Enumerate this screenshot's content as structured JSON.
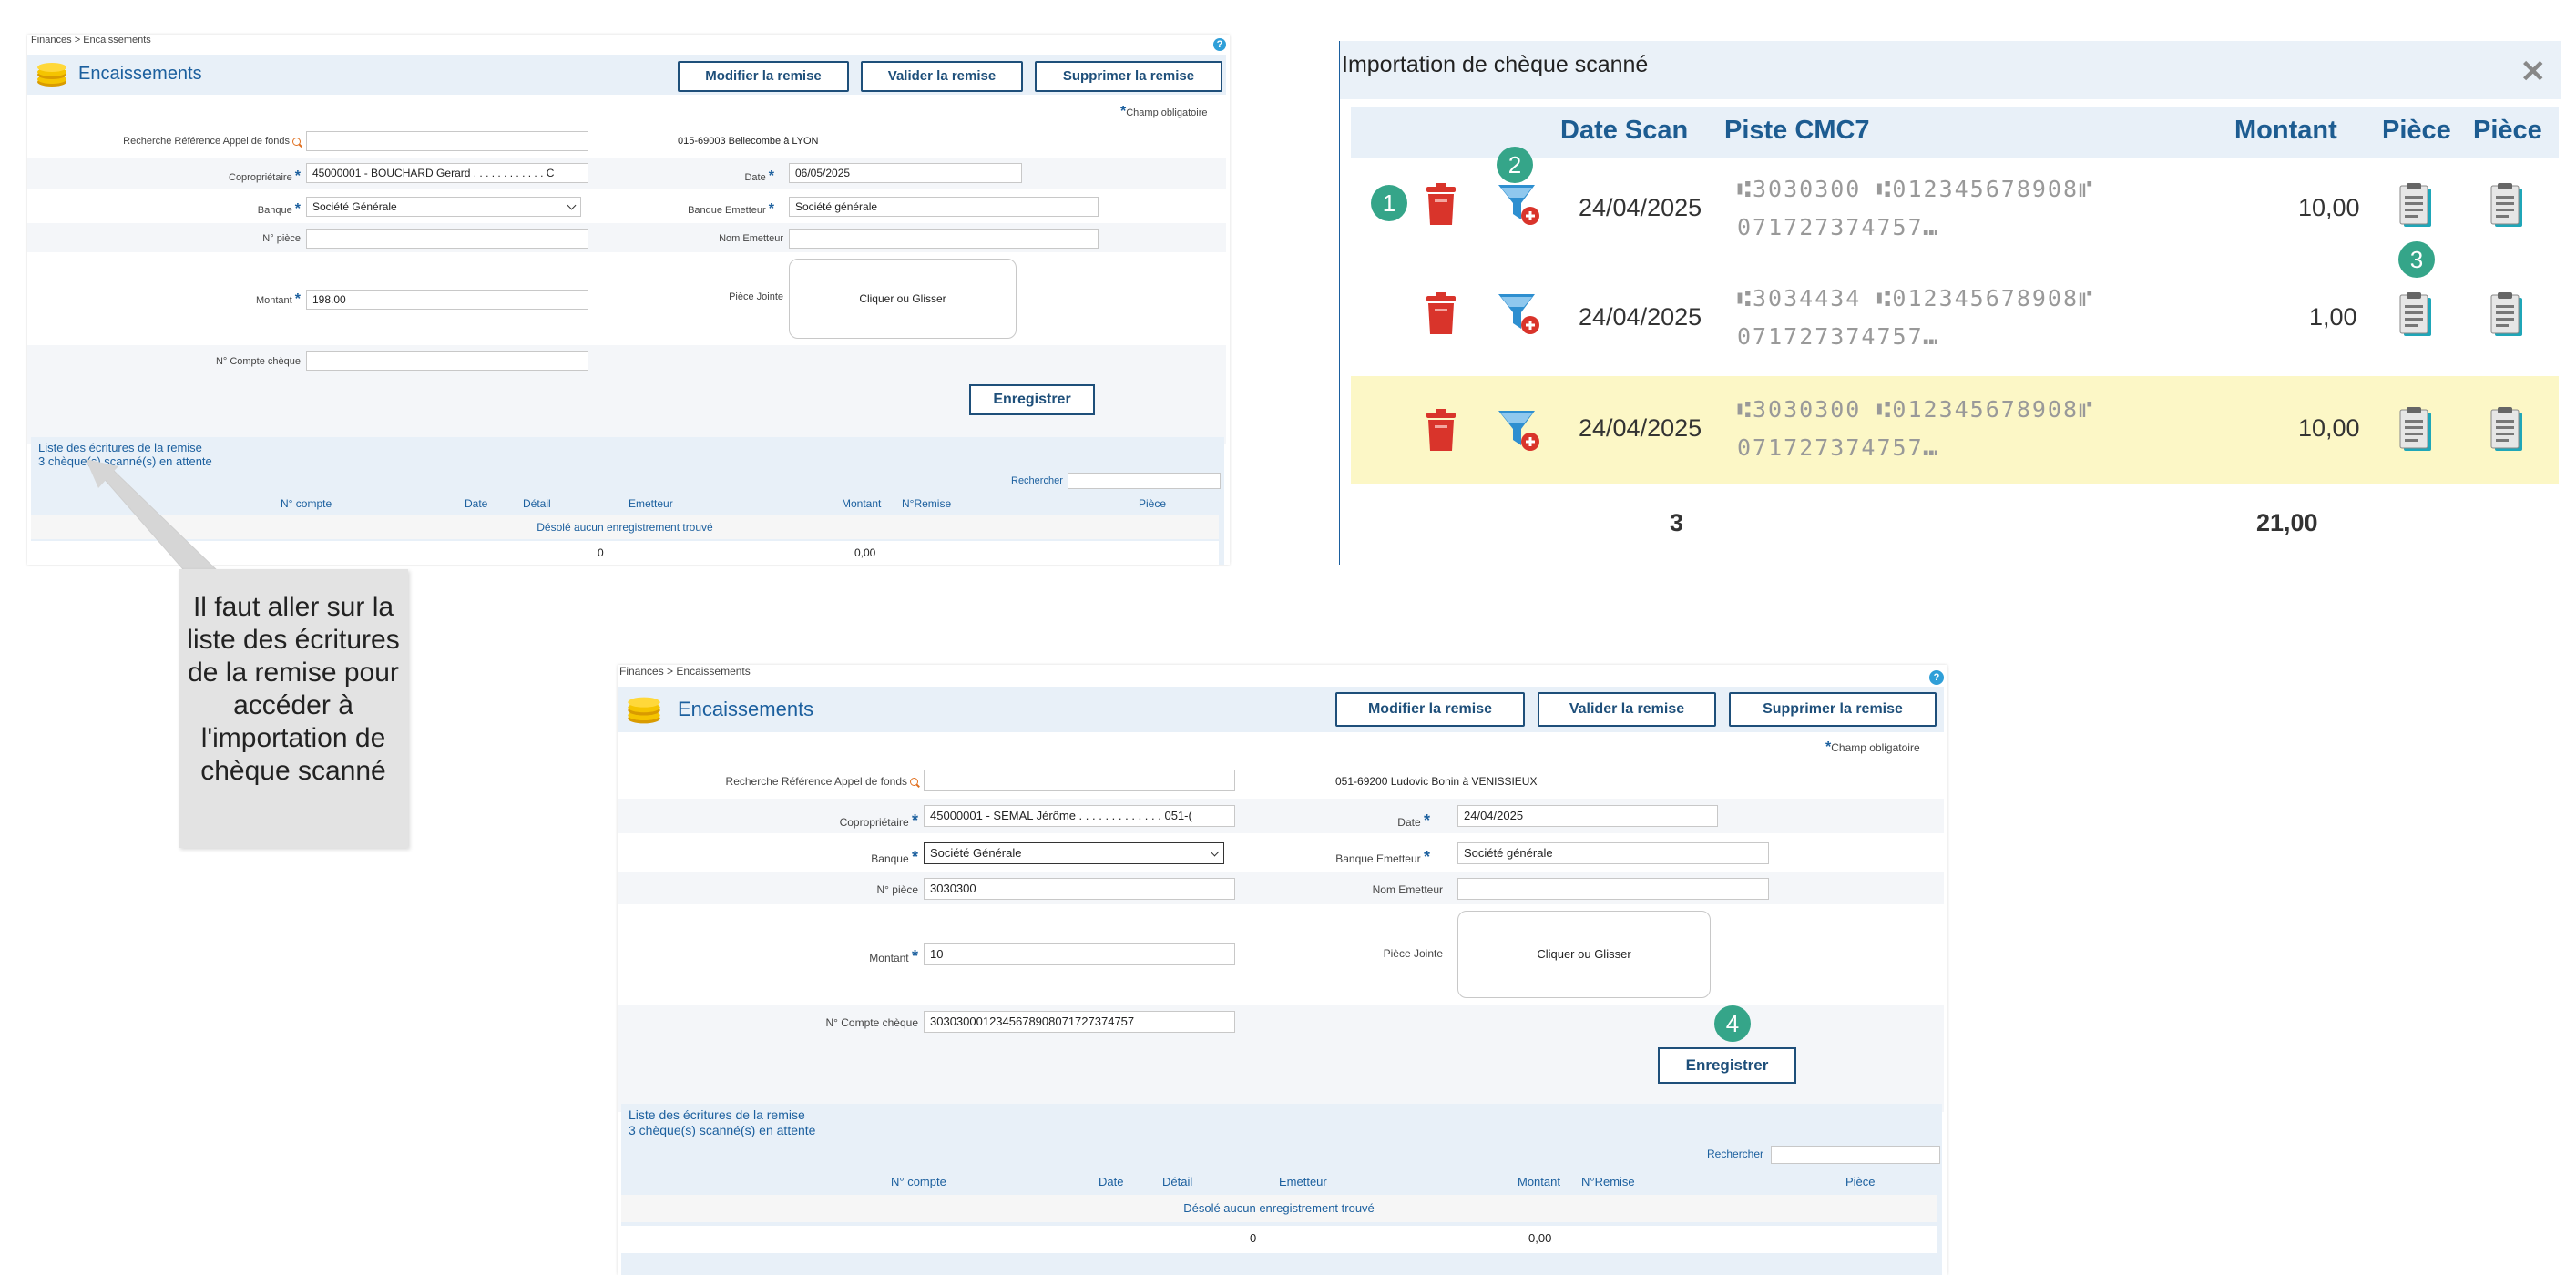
{
  "top_form": {
    "breadcrumb": {
      "section": "Finances",
      "sep": " > ",
      "page": "Encaissements"
    },
    "title": "Encaissements",
    "buttons": {
      "modify": "Modifier la remise",
      "validate": "Valider la remise",
      "delete": "Supprimer la remise"
    },
    "required_note": "Champ obligatoire",
    "fields": {
      "search_ref": {
        "label": "Recherche Référence Appel de fonds",
        "value": ""
      },
      "owner_info": "015-69003 Bellecombe à LYON",
      "coproprietaire": {
        "label": "Copropriétaire",
        "value": "45000001 - BOUCHARD Gerard . . . . . . . . . . . . C"
      },
      "date": {
        "label": "Date",
        "value": "06/05/2025"
      },
      "banque": {
        "label": "Banque",
        "value": "Société Générale"
      },
      "banque_emetteur": {
        "label": "Banque Emetteur",
        "value": "Société générale"
      },
      "num_piece": {
        "label": "N° pièce",
        "value": ""
      },
      "nom_emetteur": {
        "label": "Nom Emetteur",
        "value": ""
      },
      "montant": {
        "label": "Montant",
        "value": "198.00"
      },
      "piece_jointe": {
        "label": "Pièce Jointe",
        "drop_text": "Cliquer ou Glisser"
      },
      "compte_cheque": {
        "label": "N° Compte chèque",
        "value": ""
      }
    },
    "save_label": "Enregistrer",
    "list": {
      "title": "Liste des écritures de la remise",
      "pending": "3 chèque(s) scanné(s) en attente",
      "search_label": "Rechercher",
      "columns": [
        "N° compte",
        "Date",
        "Détail",
        "Emetteur",
        "Montant",
        "N°Remise",
        "Pièce"
      ],
      "empty_message": "Désolé aucun enregistrement trouvé",
      "total_count": "0",
      "total_amount": "0,00"
    }
  },
  "bottom_form": {
    "breadcrumb": {
      "section": "Finances",
      "sep": " > ",
      "page": "Encaissements"
    },
    "title": "Encaissements",
    "buttons": {
      "modify": "Modifier la remise",
      "validate": "Valider la remise",
      "delete": "Supprimer la remise"
    },
    "required_note": "Champ obligatoire",
    "fields": {
      "search_ref": {
        "label": "Recherche Référence Appel de fonds",
        "value": ""
      },
      "owner_info": "051-69200 Ludovic Bonin à VENISSIEUX",
      "coproprietaire": {
        "label": "Copropriétaire",
        "value": "45000001 - SEMAL Jérôme . . . . . . . . . . . . . 051-("
      },
      "date": {
        "label": "Date",
        "value": "24/04/2025"
      },
      "banque": {
        "label": "Banque",
        "value": "Société Générale"
      },
      "banque_emetteur": {
        "label": "Banque Emetteur",
        "value": "Société générale"
      },
      "num_piece": {
        "label": "N° pièce",
        "value": "3030300"
      },
      "nom_emetteur": {
        "label": "Nom Emetteur",
        "value": ""
      },
      "montant": {
        "label": "Montant",
        "value": "10"
      },
      "piece_jointe": {
        "label": "Pièce Jointe",
        "drop_text": "Cliquer ou Glisser"
      },
      "compte_cheque": {
        "label": "N° Compte chèque",
        "value": "3030300012345678908071727374757"
      }
    },
    "save_label": "Enregistrer",
    "step_badge": "4",
    "list": {
      "title": "Liste des écritures de la remise",
      "pending": "3 chèque(s) scanné(s) en attente",
      "search_label": "Rechercher",
      "columns": [
        "N° compte",
        "Date",
        "Détail",
        "Emetteur",
        "Montant",
        "N°Remise",
        "Pièce"
      ],
      "empty_message": "Désolé aucun enregistrement trouvé",
      "total_count": "0",
      "total_amount": "0,00"
    }
  },
  "dialog": {
    "title": "Importation de chèque scanné",
    "columns": {
      "date": "Date Scan",
      "cmc7": "Piste CMC7",
      "montant": "Montant",
      "piece1": "Pièce",
      "piece2": "Pièce"
    },
    "rows": [
      {
        "date": "24/04/2025",
        "cmc7_line1": "⑆3030300 ⑆012345678908⑈",
        "cmc7_line2": "071727374757⑉",
        "montant": "10,00",
        "highlighted": false
      },
      {
        "date": "24/04/2025",
        "cmc7_line1": "⑆3034434 ⑆012345678908⑈",
        "cmc7_line2": "071727374757⑉",
        "montant": "1,00",
        "highlighted": false
      },
      {
        "date": "24/04/2025",
        "cmc7_line1": "⑆3030300 ⑆012345678908⑈",
        "cmc7_line2": "071727374757⑉",
        "montant": "10,00",
        "highlighted": true
      }
    ],
    "footer": {
      "count": "3",
      "total": "21,00"
    },
    "badges": {
      "delete": "1",
      "filter": "2",
      "piece": "3"
    },
    "colors": {
      "header_text": "#1d5c91",
      "highlight_row": "#fcf7c6",
      "badge": "#35a589",
      "trash": "#d9342b",
      "filter": "#2e8fd0"
    }
  },
  "callout": {
    "text": "Il faut aller sur la liste des écritures de la remise pour accéder à l'importation de chèque scanné"
  }
}
